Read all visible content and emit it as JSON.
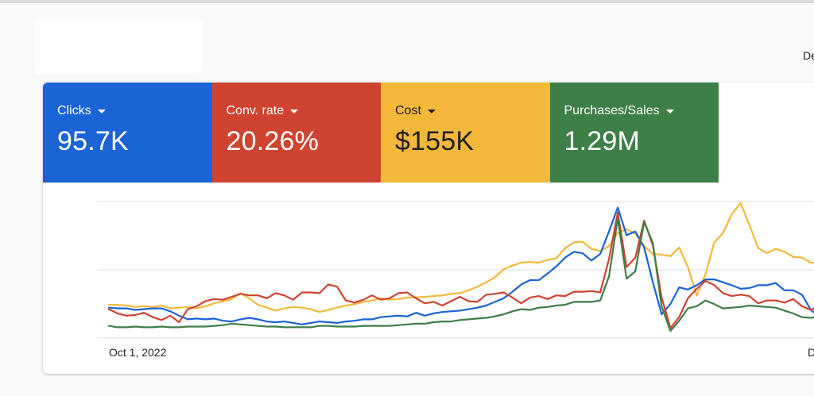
{
  "header": {
    "date_range_text": "De"
  },
  "tiles": [
    {
      "label": "Clicks",
      "value": "95.7K",
      "color": "#1a64d6",
      "text": "light"
    },
    {
      "label": "Conv. rate",
      "value": "20.26%",
      "color": "#cf4430",
      "text": "light"
    },
    {
      "label": "Cost",
      "value": "$155K",
      "color": "#f4b93b",
      "text": "dark"
    },
    {
      "label": "Purchases/Sales",
      "value": "1.29M",
      "color": "#3e7e47",
      "text": "light"
    }
  ],
  "chart": {
    "x_start_label": "Oct 1, 2022",
    "x_end_label": "D"
  },
  "chart_data": {
    "type": "line",
    "xlabel": "",
    "ylabel": "",
    "grid": true,
    "x_count": 82,
    "series": [
      {
        "color": "#f4b93b",
        "values": [
          36,
          36,
          35,
          33,
          34,
          33,
          35,
          31,
          32,
          33,
          31,
          34,
          38,
          41,
          44,
          52,
          45,
          36,
          32,
          28,
          31,
          33,
          32,
          30,
          26,
          29,
          32,
          35,
          37,
          40,
          42,
          45,
          43,
          44,
          46,
          46,
          47,
          48,
          49,
          51,
          52,
          56,
          61,
          67,
          74,
          85,
          90,
          94,
          95,
          94,
          98,
          100,
          114,
          122,
          123,
          113,
          110,
          117,
          135,
          140,
          134,
          117,
          106,
          105,
          103,
          115,
          88,
          49,
          78,
          122,
          135,
          161,
          176,
          146,
          114,
          107,
          113,
          109,
          102,
          101,
          94,
          93
        ]
      },
      {
        "color": "#1a64d6",
        "values": [
          32,
          31,
          31,
          29,
          30,
          31,
          31,
          27,
          21,
          16,
          17,
          16,
          17,
          14,
          13,
          16,
          18,
          16,
          13,
          12,
          13,
          11,
          9,
          11,
          13,
          12,
          11,
          13,
          14,
          16,
          16,
          19,
          20,
          21,
          20,
          25,
          21,
          24,
          26,
          27,
          28,
          30,
          32,
          35,
          40,
          45,
          54,
          64,
          70,
          70,
          79,
          89,
          101,
          109,
          107,
          97,
          106,
          137,
          170,
          132,
          137,
          115,
          67,
          23,
          37,
          60,
          57,
          63,
          71,
          71,
          67,
          63,
          58,
          59,
          63,
          63,
          66,
          56,
          56,
          50,
          29,
          19
        ]
      },
      {
        "color": "#cf4430",
        "values": [
          30,
          24,
          21,
          22,
          25,
          19,
          15,
          21,
          12,
          30,
          34,
          41,
          44,
          43,
          47,
          51,
          49,
          49,
          45,
          52,
          49,
          43,
          53,
          53,
          52,
          64,
          61,
          42,
          39,
          43,
          49,
          43,
          45,
          52,
          53,
          45,
          38,
          40,
          35,
          41,
          47,
          41,
          40,
          50,
          51,
          53,
          46,
          38,
          46,
          48,
          44,
          49,
          48,
          54,
          54,
          55,
          53,
          99,
          163,
          88,
          101,
          152,
          118,
          46,
          4,
          19,
          45,
          58,
          69,
          63,
          52,
          48,
          50,
          48,
          38,
          42,
          42,
          39,
          44,
          34,
          29,
          35
        ]
      },
      {
        "color": "#3e7e47",
        "values": [
          7,
          5,
          5,
          6,
          5,
          5,
          6,
          5,
          5,
          6,
          6,
          6,
          7,
          8,
          10,
          9,
          8,
          7,
          6,
          6,
          5,
          5,
          5,
          5,
          7,
          7,
          6,
          6,
          6,
          7,
          7,
          7,
          7,
          8,
          9,
          10,
          10,
          12,
          13,
          13,
          15,
          16,
          17,
          18,
          20,
          23,
          27,
          30,
          29,
          32,
          33,
          35,
          36,
          40,
          40,
          40,
          42,
          75,
          155,
          72,
          82,
          150,
          121,
          34,
          0,
          14,
          31,
          34,
          42,
          37,
          31,
          32,
          33,
          35,
          34,
          33,
          32,
          28,
          24,
          19,
          18,
          20
        ]
      }
    ]
  }
}
